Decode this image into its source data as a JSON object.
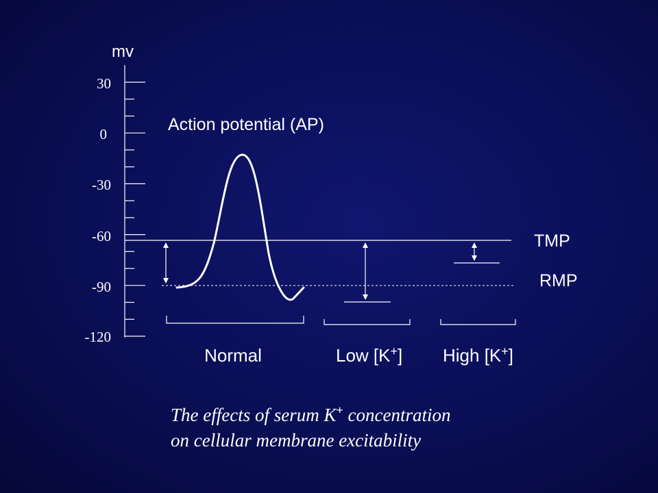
{
  "axis": {
    "unit": "mv",
    "ticks": [
      "30",
      "0",
      "-30",
      "-60",
      "-90",
      "-120"
    ]
  },
  "annotations": {
    "action_potential": "Action potential (AP)",
    "tmp": "TMP",
    "rmp": "RMP"
  },
  "groups": {
    "normal": "Normal",
    "low_k_prefix": "Low [K",
    "high_k_prefix": "High [K",
    "superscript_plus": "+",
    "close_bracket": "]"
  },
  "caption": {
    "line1_prefix": "The effects of serum K",
    "line1_suffix": " concentration",
    "superscript_plus": "+",
    "line2": "on cellular membrane excitability"
  },
  "colors": {
    "background": "#0a0e55",
    "foreground": "#ffffff"
  }
}
